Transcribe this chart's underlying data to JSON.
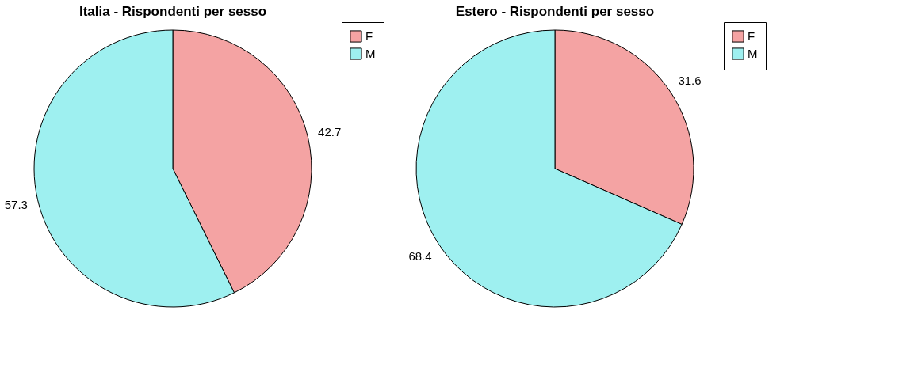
{
  "chart_data": [
    {
      "type": "pie",
      "title": "Italia - Rispondenti per sesso",
      "categories": [
        "F",
        "M"
      ],
      "values": [
        42.7,
        57.3
      ],
      "colors": [
        "#f4a3a3",
        "#9ef0f0"
      ],
      "data_labels": true,
      "legend": "top right"
    },
    {
      "type": "pie",
      "title": "Estero - Rispondenti per sesso",
      "categories": [
        "F",
        "M"
      ],
      "values": [
        31.6,
        68.4
      ],
      "colors": [
        "#f4a3a3",
        "#9ef0f0"
      ],
      "data_labels": true,
      "legend": "top right"
    }
  ]
}
